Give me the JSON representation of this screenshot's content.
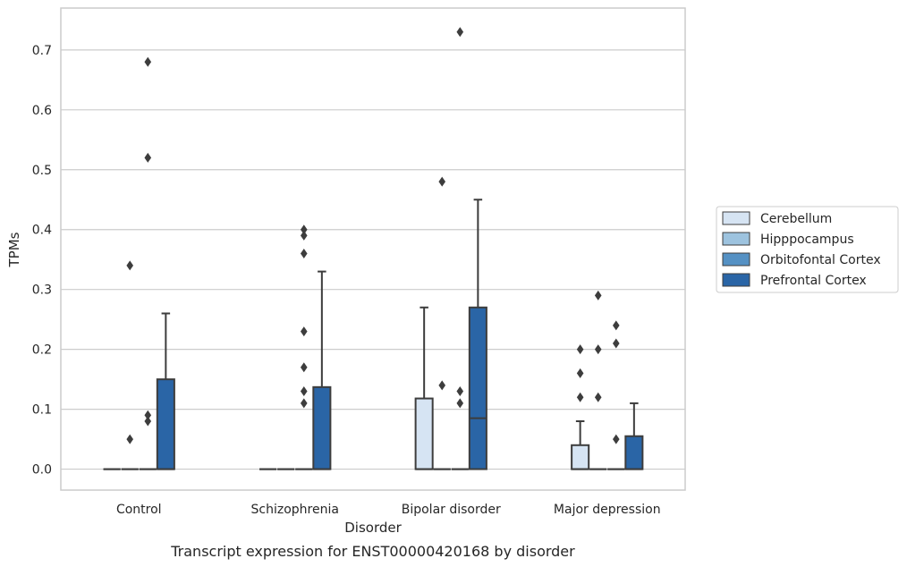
{
  "caption": "Transcript expression for ENST00000420168 by disorder",
  "chart_data": {
    "type": "box",
    "title": "",
    "xlabel": "Disorder",
    "ylabel": "TPMs",
    "ylim": [
      -0.035,
      0.77
    ],
    "yticks": [
      0.0,
      0.1,
      0.2,
      0.3,
      0.4,
      0.5,
      0.6,
      0.7
    ],
    "ytick_labels": [
      "0.0",
      "0.1",
      "0.2",
      "0.3",
      "0.4",
      "0.5",
      "0.6",
      "0.7"
    ],
    "grid": "horizontal",
    "legend_position": "right",
    "categories": [
      "Control",
      "Schizophrenia",
      "Bipolar disorder",
      "Major depression"
    ],
    "series": [
      {
        "name": "Cerebellum",
        "color": "#d6e4f3",
        "boxes": [
          {
            "q1": 0,
            "median": 0,
            "q3": 0,
            "whisker_low": 0,
            "whisker_high": 0,
            "outliers": []
          },
          {
            "q1": 0,
            "median": 0,
            "q3": 0,
            "whisker_low": 0,
            "whisker_high": 0,
            "outliers": []
          },
          {
            "q1": 0,
            "median": 0,
            "q3": 0.118,
            "whisker_low": 0,
            "whisker_high": 0.27,
            "outliers": []
          },
          {
            "q1": 0,
            "median": 0,
            "q3": 0.04,
            "whisker_low": 0,
            "whisker_high": 0.08,
            "outliers": [
              0.12,
              0.16,
              0.2
            ]
          }
        ]
      },
      {
        "name": "Hipppocampus",
        "color": "#9dc3df",
        "boxes": [
          {
            "q1": 0,
            "median": 0,
            "q3": 0,
            "whisker_low": 0,
            "whisker_high": 0,
            "outliers": [
              0.05,
              0.34
            ]
          },
          {
            "q1": 0,
            "median": 0,
            "q3": 0,
            "whisker_low": 0,
            "whisker_high": 0,
            "outliers": []
          },
          {
            "q1": 0,
            "median": 0,
            "q3": 0,
            "whisker_low": 0,
            "whisker_high": 0,
            "outliers": [
              0.14,
              0.48
            ]
          },
          {
            "q1": 0,
            "median": 0,
            "q3": 0,
            "whisker_low": 0,
            "whisker_high": 0,
            "outliers": [
              0.12,
              0.2,
              0.29
            ]
          }
        ]
      },
      {
        "name": "Orbitofontal Cortex",
        "color": "#5591c4",
        "boxes": [
          {
            "q1": 0,
            "median": 0,
            "q3": 0,
            "whisker_low": 0,
            "whisker_high": 0,
            "outliers": [
              0.08,
              0.09,
              0.52,
              0.68
            ]
          },
          {
            "q1": 0,
            "median": 0,
            "q3": 0,
            "whisker_low": 0,
            "whisker_high": 0,
            "outliers": [
              0.11,
              0.13,
              0.17,
              0.23,
              0.36,
              0.39,
              0.4
            ]
          },
          {
            "q1": 0,
            "median": 0,
            "q3": 0,
            "whisker_low": 0,
            "whisker_high": 0,
            "outliers": [
              0.11,
              0.13,
              0.73
            ]
          },
          {
            "q1": 0,
            "median": 0,
            "q3": 0,
            "whisker_low": 0,
            "whisker_high": 0,
            "outliers": [
              0.05,
              0.21,
              0.24
            ]
          }
        ]
      },
      {
        "name": "Prefrontal Cortex",
        "color": "#2a65a6",
        "boxes": [
          {
            "q1": 0,
            "median": 0,
            "q3": 0.15,
            "whisker_low": 0,
            "whisker_high": 0.26,
            "outliers": []
          },
          {
            "q1": 0,
            "median": 0,
            "q3": 0.137,
            "whisker_low": 0,
            "whisker_high": 0.33,
            "outliers": []
          },
          {
            "q1": 0,
            "median": 0.085,
            "q3": 0.27,
            "whisker_low": 0,
            "whisker_high": 0.45,
            "outliers": []
          },
          {
            "q1": 0,
            "median": 0,
            "q3": 0.055,
            "whisker_low": 0,
            "whisker_high": 0.11,
            "outliers": []
          }
        ]
      }
    ]
  }
}
